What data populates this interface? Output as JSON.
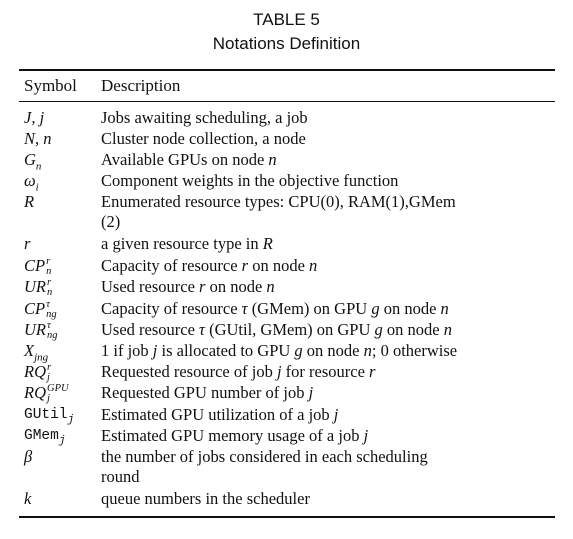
{
  "caption": {
    "table_number": "TABLE 5",
    "title": "Notations Definition"
  },
  "header": {
    "symbol": "Symbol",
    "description": "Description"
  },
  "rows": [
    {
      "symbol": "J, j",
      "description": "Jobs awaiting scheduling, a job"
    },
    {
      "symbol": "N, n",
      "description": "Cluster node collection, a node"
    },
    {
      "symbol": "Gn",
      "description": "Available GPUs on node n"
    },
    {
      "symbol": "ωi",
      "description": "Component weights in the objective function"
    },
    {
      "symbol": "R",
      "description": "Enumerated resource types: CPU(0), RAM(1),GMem (2)"
    },
    {
      "symbol": "r",
      "description": "a given resource type in R"
    },
    {
      "symbol": "CPrn",
      "description": "Capacity of resource r on node n"
    },
    {
      "symbol": "URrn",
      "description": "Used resource r on node n"
    },
    {
      "symbol": "CPτng",
      "description": "Capacity of resource τ (GMem) on GPU g on node n"
    },
    {
      "symbol": "URτng",
      "description": "Used resource τ (GUtil, GMem) on GPU g on node n"
    },
    {
      "symbol": "Xjng",
      "description": "1 if job j is allocated to GPU g on node n; 0 otherwise"
    },
    {
      "symbol": "RQrj",
      "description": "Requested resource of job j for resource r"
    },
    {
      "symbol": "RQGPUj",
      "description": "Requested GPU number of job j"
    },
    {
      "symbol": "GUtilj",
      "description": "Estimated GPU utilization of a job j"
    },
    {
      "symbol": "GMemj",
      "description": "Estimated GPU memory usage of a job j"
    },
    {
      "symbol": "β",
      "description": "the number of jobs considered in each scheduling round"
    },
    {
      "symbol": "k",
      "description": "queue numbers in the scheduler"
    }
  ]
}
